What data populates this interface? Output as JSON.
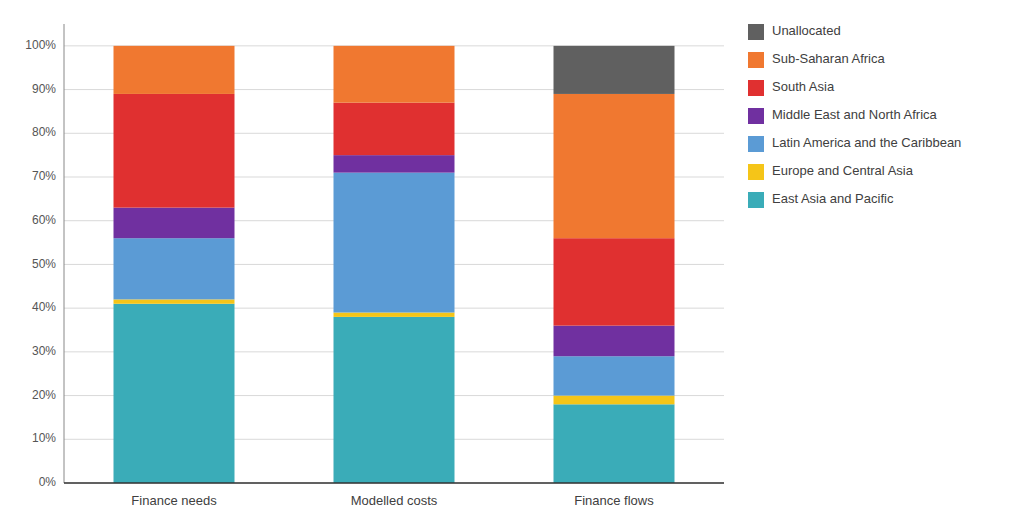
{
  "chart_data": {
    "type": "bar",
    "stacked": true,
    "categories": [
      "Finance needs",
      "Modelled costs",
      "Finance flows"
    ],
    "series": [
      {
        "name": "East Asia and Pacific",
        "color": "#3AACB8",
        "values": [
          41,
          38,
          18
        ]
      },
      {
        "name": "Europe and Central Asia",
        "color": "#F5C518",
        "values": [
          1,
          1,
          2
        ]
      },
      {
        "name": "Latin America and the Caribbean",
        "color": "#5B9BD5",
        "values": [
          14,
          32,
          9
        ]
      },
      {
        "name": "Middle East and North Africa",
        "color": "#7030A0",
        "values": [
          7,
          4,
          7
        ]
      },
      {
        "name": "South Asia",
        "color": "#E03030",
        "values": [
          26,
          12,
          20
        ]
      },
      {
        "name": "Sub-Saharan Africa",
        "color": "#F07830",
        "values": [
          11,
          13,
          33
        ]
      },
      {
        "name": "Unallocated",
        "color": "#606060",
        "values": [
          0,
          0,
          11
        ]
      }
    ],
    "ylim": [
      0,
      105
    ],
    "yticks": [
      {
        "value": 0,
        "label": "0%"
      },
      {
        "value": 10,
        "label": "10%"
      },
      {
        "value": 20,
        "label": "20%"
      },
      {
        "value": 30,
        "label": "30%"
      },
      {
        "value": 40,
        "label": "40%"
      },
      {
        "value": 50,
        "label": "50%"
      },
      {
        "value": 60,
        "label": "60%"
      },
      {
        "value": 70,
        "label": "70%"
      },
      {
        "value": 80,
        "label": "80%"
      },
      {
        "value": 90,
        "label": "90%"
      },
      {
        "value": 100,
        "label": "100%"
      }
    ],
    "grid": true,
    "legend": "right"
  }
}
